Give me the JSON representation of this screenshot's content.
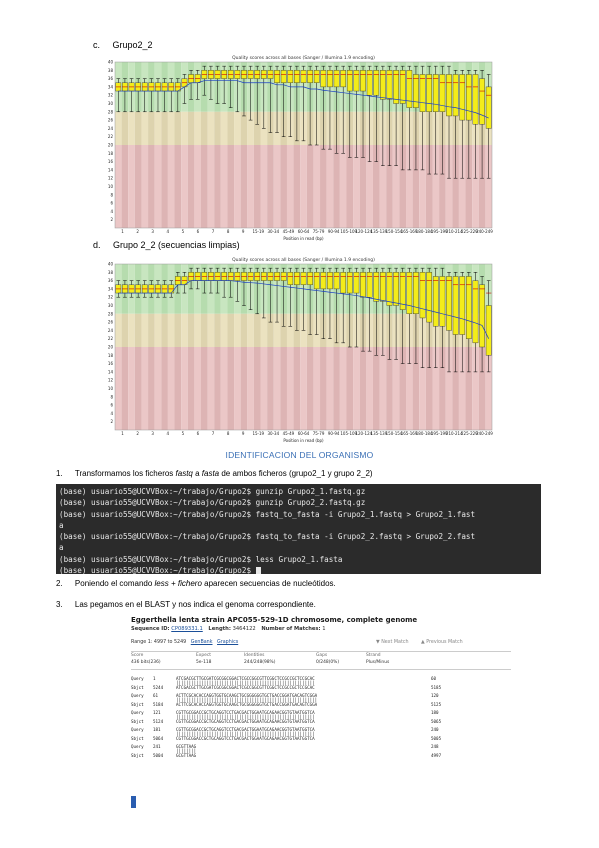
{
  "section_c": {
    "label": "c.",
    "title": "Grupo2_2"
  },
  "section_d": {
    "label": "d.",
    "title": "Grupo 2_2 (secuencias limpias)"
  },
  "chart_data": [
    {
      "type": "box",
      "title": "Quality scores across all bases (Sanger / Illumina 1.9 encoding)",
      "xlabel": "Position in read (bp)",
      "ylabel": "",
      "ylim": [
        0,
        40
      ],
      "yticks": [
        2,
        4,
        6,
        8,
        10,
        12,
        14,
        16,
        18,
        20,
        22,
        24,
        26,
        28,
        30,
        32,
        34,
        36,
        38,
        40
      ],
      "categories": [
        "1",
        "2",
        "3",
        "4",
        "5",
        "6",
        "7",
        "8",
        "9",
        "10-14",
        "15-19",
        "20-24",
        "25-29",
        "30-34",
        "35-39",
        "40-44",
        "45-49",
        "50-54",
        "55-59",
        "60-64",
        "65-69",
        "70-74",
        "75-79",
        "80-84",
        "85-89",
        "90-94",
        "95-99",
        "100-104",
        "105-109",
        "110-114",
        "115-119",
        "120-124",
        "125-129",
        "130-134",
        "135-139",
        "140-144",
        "145-149",
        "150-154",
        "155-159",
        "160-164",
        "165-169",
        "170-174",
        "175-179",
        "180-184",
        "185-189",
        "190-194",
        "195-199",
        "200-204",
        "205-209",
        "210-214",
        "215-219",
        "220-224",
        "225-229",
        "230-234",
        "235-239",
        "240-244",
        "245-249"
      ],
      "xticklabels": [
        "1",
        "2",
        "3",
        "4",
        "5",
        "6",
        "7",
        "8",
        "9",
        "15-19",
        "30-34",
        "45-49",
        "60-64",
        "75-79",
        "90-94",
        "105-109",
        "120-124",
        "135-139",
        "150-154",
        "165-169",
        "180-184",
        "195-199",
        "210-214",
        "225-229",
        "240-249"
      ],
      "median": [
        34,
        34,
        34,
        34,
        34,
        34,
        34,
        34,
        34,
        34,
        35,
        36,
        36,
        37,
        37,
        37,
        37,
        37,
        37,
        37,
        37,
        37,
        37,
        37,
        37,
        37,
        37,
        37,
        37,
        37,
        37,
        37,
        37,
        37,
        37,
        37,
        37,
        37,
        37,
        37,
        37,
        37,
        37,
        37,
        36,
        36,
        36,
        36,
        36,
        35,
        35,
        35,
        35,
        34,
        34,
        33,
        32
      ],
      "q1": [
        33,
        33,
        33,
        33,
        33,
        33,
        33,
        33,
        33,
        33,
        34,
        35,
        35,
        36,
        36,
        36,
        36,
        36,
        36,
        36,
        36,
        36,
        36,
        36,
        35,
        35,
        35,
        35,
        35,
        35,
        35,
        34,
        34,
        34,
        34,
        33,
        33,
        33,
        32,
        32,
        31,
        31,
        30,
        30,
        29,
        29,
        28,
        28,
        28,
        28,
        27,
        27,
        26,
        26,
        25,
        25,
        24
      ],
      "q3": [
        35,
        35,
        35,
        35,
        35,
        35,
        35,
        35,
        35,
        35,
        36,
        37,
        37,
        38,
        38,
        38,
        38,
        38,
        38,
        38,
        38,
        38,
        38,
        38,
        38,
        38,
        38,
        38,
        38,
        38,
        38,
        38,
        38,
        38,
        38,
        38,
        38,
        38,
        38,
        38,
        38,
        38,
        38,
        38,
        38,
        37,
        37,
        37,
        37,
        37,
        37,
        37,
        37,
        37,
        37,
        36,
        34
      ],
      "low": [
        28,
        28,
        28,
        28,
        28,
        28,
        28,
        28,
        28,
        28,
        30,
        31,
        31,
        32,
        31,
        30,
        30,
        29,
        28,
        27,
        26,
        25,
        24,
        23,
        23,
        22,
        22,
        21,
        21,
        20,
        20,
        19,
        19,
        18,
        18,
        17,
        17,
        17,
        16,
        16,
        15,
        15,
        15,
        14,
        14,
        14,
        14,
        13,
        13,
        13,
        12,
        12,
        12,
        12,
        12,
        12,
        12
      ],
      "high": [
        36,
        36,
        36,
        36,
        36,
        36,
        36,
        36,
        36,
        36,
        37,
        38,
        38,
        39,
        39,
        39,
        39,
        39,
        39,
        39,
        39,
        39,
        39,
        39,
        39,
        39,
        39,
        39,
        39,
        39,
        39,
        39,
        39,
        39,
        39,
        39,
        39,
        39,
        39,
        39,
        39,
        39,
        39,
        39,
        39,
        39,
        39,
        39,
        39,
        39,
        39,
        38,
        38,
        38,
        38,
        38,
        37
      ],
      "mean": [
        33,
        33,
        33,
        33,
        33,
        33,
        33,
        33,
        33,
        33,
        34,
        35,
        35,
        35.5,
        35.5,
        35.5,
        35.5,
        35.5,
        35.5,
        35,
        35,
        35,
        35,
        35,
        34.5,
        34.5,
        34,
        34,
        34,
        33.5,
        33.5,
        33.2,
        33,
        32.8,
        32.6,
        32.4,
        32.2,
        32,
        31.8,
        31.6,
        31.4,
        31.2,
        31,
        30.8,
        30.6,
        30.4,
        30.2,
        30,
        29.8,
        29.5,
        29.2,
        29,
        28.6,
        28.2,
        27.8,
        27.2,
        26.5
      ]
    },
    {
      "type": "box",
      "title": "Quality scores across all bases (Sanger / Illumina 1.9 encoding)",
      "xlabel": "Position in read (bp)",
      "ylabel": "",
      "ylim": [
        0,
        40
      ],
      "yticks": [
        2,
        4,
        6,
        8,
        10,
        12,
        14,
        16,
        18,
        20,
        22,
        24,
        26,
        28,
        30,
        32,
        34,
        36,
        38,
        40
      ],
      "categories": [
        "1",
        "2",
        "3",
        "4",
        "5",
        "6",
        "7",
        "8",
        "9",
        "10-14",
        "15-19",
        "20-24",
        "25-29",
        "30-34",
        "35-39",
        "40-44",
        "45-49",
        "50-54",
        "55-59",
        "60-64",
        "65-69",
        "70-74",
        "75-79",
        "80-84",
        "85-89",
        "90-94",
        "95-99",
        "100-104",
        "105-109",
        "110-114",
        "115-119",
        "120-124",
        "125-129",
        "130-134",
        "135-139",
        "140-144",
        "145-149",
        "150-154",
        "155-159",
        "160-164",
        "165-169",
        "170-174",
        "175-179",
        "180-184",
        "185-189",
        "190-194",
        "195-199",
        "200-204",
        "205-209",
        "210-214",
        "215-219",
        "220-224",
        "225-229",
        "230-234",
        "235-239",
        "240-244",
        "245-249"
      ],
      "xticklabels": [
        "1",
        "2",
        "3",
        "4",
        "5",
        "6",
        "7",
        "8",
        "9",
        "15-19",
        "30-34",
        "45-49",
        "60-64",
        "75-79",
        "90-94",
        "105-109",
        "120-124",
        "135-139",
        "150-154",
        "165-169",
        "180-184",
        "195-199",
        "210-214",
        "225-229",
        "240-249"
      ],
      "median": [
        34,
        34,
        34,
        34,
        34,
        34,
        34,
        34,
        34,
        36,
        36,
        37,
        37,
        37,
        37,
        37,
        37,
        37,
        37,
        37,
        37,
        37,
        37,
        37,
        37,
        37,
        37,
        37,
        37,
        37,
        37,
        37,
        37,
        37,
        37,
        37,
        37,
        37,
        37,
        37,
        37,
        37,
        37,
        37,
        37,
        37,
        36,
        36,
        36,
        36,
        36,
        35,
        35,
        35,
        34,
        34,
        33
      ],
      "q1": [
        33,
        33,
        33,
        33,
        33,
        33,
        33,
        33,
        33,
        35,
        35,
        36,
        36,
        36,
        36,
        36,
        36,
        36,
        36,
        36,
        36,
        36,
        36,
        36,
        36,
        36,
        35,
        35,
        35,
        35,
        34,
        34,
        34,
        34,
        33,
        33,
        33,
        32,
        32,
        31,
        31,
        30,
        30,
        29,
        28,
        28,
        27,
        26,
        25,
        25,
        24,
        23,
        23,
        22,
        21,
        20,
        18
      ],
      "q3": [
        35,
        35,
        35,
        35,
        35,
        35,
        35,
        35,
        35,
        37,
        37,
        38,
        38,
        38,
        38,
        38,
        38,
        38,
        38,
        38,
        38,
        38,
        38,
        38,
        38,
        38,
        38,
        38,
        38,
        38,
        38,
        38,
        38,
        38,
        38,
        38,
        38,
        38,
        38,
        38,
        38,
        38,
        38,
        38,
        38,
        38,
        38,
        38,
        37,
        37,
        37,
        37,
        37,
        37,
        36,
        35,
        30
      ],
      "low": [
        32,
        32,
        32,
        32,
        32,
        32,
        32,
        32,
        32,
        33,
        33,
        34,
        34,
        33,
        33,
        33,
        32,
        32,
        31,
        30,
        29,
        28,
        27,
        26,
        26,
        25,
        25,
        24,
        24,
        23,
        23,
        22,
        22,
        21,
        21,
        20,
        20,
        19,
        19,
        18,
        18,
        17,
        17,
        16,
        16,
        16,
        15,
        15,
        15,
        15,
        14,
        14,
        14,
        14,
        14,
        14,
        14
      ],
      "high": [
        36,
        36,
        36,
        36,
        36,
        36,
        36,
        36,
        36,
        38,
        38,
        39,
        39,
        39,
        39,
        39,
        39,
        39,
        39,
        39,
        39,
        39,
        39,
        39,
        39,
        39,
        39,
        39,
        39,
        39,
        39,
        39,
        39,
        39,
        39,
        39,
        39,
        39,
        39,
        39,
        39,
        39,
        39,
        39,
        39,
        39,
        39,
        39,
        39,
        39,
        38,
        38,
        38,
        38,
        38,
        37,
        36
      ],
      "mean": [
        33,
        33,
        33,
        33,
        33,
        33,
        33,
        33,
        33,
        35,
        35,
        36,
        36,
        36,
        36,
        36,
        36,
        36,
        35.8,
        35.6,
        35.5,
        35.4,
        35.2,
        35,
        34.8,
        34.6,
        34.4,
        34.2,
        34,
        33.8,
        33.6,
        33.4,
        33.2,
        33,
        32.8,
        32.6,
        32.4,
        32.1,
        31.8,
        31.5,
        31.2,
        30.9,
        30.6,
        30.3,
        30,
        29.6,
        29.2,
        28.8,
        28.4,
        28,
        27.6,
        27.2,
        26.8,
        26.3,
        25.8,
        25.2,
        22
      ]
    }
  ],
  "organism": {
    "heading": "IDENTIFICACION DEL ORGANISMO"
  },
  "steps": [
    {
      "num": "1.",
      "text_a": "Transformamos los ficheros ",
      "em1": "fastq",
      "text_b": " a ",
      "em2": "fasta",
      "text_c": " de ambos ficheros (grupo2_1 y grupo 2_2)"
    },
    {
      "num": "2.",
      "text_a": "Poniendo el comando ",
      "em1": "less + fichero",
      "text_b": " aparecen secuencias de nucleótidos."
    },
    {
      "num": "3.",
      "text_a": "Las pegamos en el BLAST y nos indica el genoma correspondiente."
    }
  ],
  "terminal": {
    "lines": [
      "(base) usuario55@UCVVBox:~/trabajo/Grupo2$ gunzip Grupo2_1.fastq.gz",
      "(base) usuario55@UCVVBox:~/trabajo/Grupo2$ gunzip Grupo2_2.fastq.gz",
      "(base) usuario55@UCVVBox:~/trabajo/Grupo2$ fastq_to_fasta -i Grupo2_1.fastq > Grupo2_1.fast",
      "a",
      "(base) usuario55@UCVVBox:~/trabajo/Grupo2$ fastq_to_fasta -i Grupo2_2.fastq > Grupo2_2.fast",
      "a",
      "(base) usuario55@UCVVBox:~/trabajo/Grupo2$ less Grupo2_1.fasta",
      "(base) usuario55@UCVVBox:~/trabajo/Grupo2$ "
    ]
  },
  "blast": {
    "title": "Eggerthella lenta strain APC055-529-1D chromosome, complete genome",
    "seq_label": "Sequence ID:",
    "seq_id": "CP089331.1",
    "length_label": "Length:",
    "length": "3464122",
    "matches_label": "Number of Matches:",
    "matches": "1",
    "range": "Range 1: 4997 to 5249",
    "genbank": "GenBank",
    "graphics": "Graphics",
    "next_match": "▼ Next Match",
    "prev_match": "▲ Previous Match",
    "stat_headers": [
      "Score",
      "Expect",
      "Identities",
      "Gaps",
      "Strand"
    ],
    "stat_values": [
      "436 bits(236)",
      "5e-118",
      "244/248(98%)",
      "0/248(0%)",
      "Plus/Minus"
    ],
    "alignment": [
      {
        "q_label": "Query",
        "q_start": "1",
        "q_seq": "ATCGACGCTTGCGATCGCGGCGGACTCGCCGGCGTTCGGCTCCGCCGCTCCGCAC",
        "q_end": "60",
        "s_label": "Sbjct",
        "s_start": "5244",
        "s_seq": "ATCGACGCTTGCGATCGCGGCGGACTCGCCGGCGTTCGGCTCCGCCGCTCCGCAC",
        "s_end": "5185"
      },
      {
        "q_label": "Query",
        "q_start": "61",
        "q_seq": "ACTTCGCACACCAGGTGGTGCAAGCTGCGGGGGGTGCTGACCGGATGACAGTCGGA",
        "q_end": "120",
        "s_label": "Sbjct",
        "s_start": "5184",
        "s_seq": "ACTTCGCACACCAGGTGGTGCAAGCTGCGGGGGGTGCTGACCGGATGACAGTCGGA",
        "s_end": "5125"
      },
      {
        "q_label": "Query",
        "q_start": "121",
        "q_seq": "CGTTGCGGACCGCTGCAGGTCCTGACGACTGGAATGCAGAACGGTGTAATGGTCA",
        "q_end": "180",
        "s_label": "Sbjct",
        "s_start": "5124",
        "s_seq": "CGTTGCGGACCGCTGCAGGTCCTGACGACTGGAATGCAGAACGGTGTAATGGTCA",
        "s_end": "5065"
      },
      {
        "q_label": "Query",
        "q_start": "181",
        "q_seq": "CGTTGCGGACCGCTGCAGGTCCTGACGACTGGAATGCAGAACGGTGTAATGGTCA",
        "q_end": "240",
        "s_label": "Sbjct",
        "s_start": "5064",
        "s_seq": "CGTTGCGGACCGCTGCAGGTCCTGACGACTGGAATGCAGAACGGTGTAATGGTCA",
        "s_end": "5005"
      },
      {
        "q_label": "Query",
        "q_start": "241",
        "q_seq": "GCGTTAAG",
        "q_end": "248",
        "s_label": "Sbjct",
        "s_start": "5004",
        "s_seq": "GCGTTAAG",
        "s_end": "4997"
      }
    ]
  }
}
